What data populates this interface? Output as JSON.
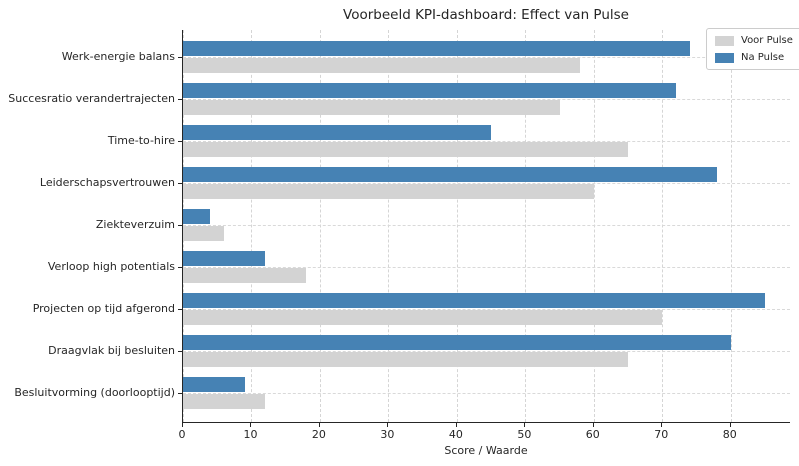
{
  "chart_data": {
    "type": "bar",
    "orientation": "horizontal",
    "title": "Voorbeeld KPI-dashboard: Effect van Pulse",
    "xlabel": "Score / Waarde",
    "categories": [
      "Werk-energie balans",
      "Succesratio verandertrajecten",
      "Time-to-hire",
      "Leiderschapsvertrouwen",
      "Ziekteverzuim",
      "Verloop high potentials",
      "Projecten op tijd afgerond",
      "Draagvlak bij besluiten",
      "Besluitvorming (doorlooptijd)"
    ],
    "series": [
      {
        "name": "Voor Pulse",
        "color": "#d3d3d3",
        "values": [
          58,
          55,
          65,
          60,
          6,
          18,
          70,
          65,
          12
        ]
      },
      {
        "name": "Na Pulse",
        "color": "#4682b4",
        "values": [
          74,
          72,
          45,
          78,
          4,
          12,
          85,
          80,
          9
        ]
      }
    ],
    "xticks": [
      0,
      10,
      20,
      30,
      40,
      50,
      60,
      70,
      80
    ],
    "xlim": [
      0,
      88.8
    ],
    "grid": true,
    "grid_style": "dashed",
    "legend_position": "upper right",
    "colors": {
      "voor_pulse": "#d3d3d3",
      "na_pulse": "#4682b4",
      "gridline": "#d5d5d5",
      "axis": "#262626",
      "background": "#ffffff"
    }
  }
}
